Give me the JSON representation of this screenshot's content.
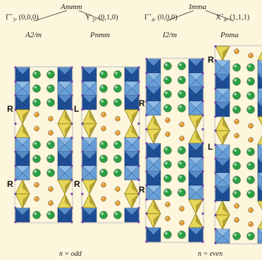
{
  "colors": {
    "background": "#fdf6dc",
    "octahedron_dark": "#1f4e96",
    "octahedron_light": "#6aa0d8",
    "tetrahedron_dark": "#8a7a12",
    "tetrahedron_light": "#e8d85a",
    "a_site_cation": "#2aa043",
    "oxygen_ion": "#e59a2c",
    "bond_lines": "#7a87a8",
    "text": "#222222"
  },
  "left_tree": {
    "parent_group": "Ammm",
    "branches": [
      {
        "irrep_letter": "Γ",
        "irrep_sup": "+",
        "irrep_sub": "3",
        "irrep_vector": ", (0,0,0)",
        "subgroup": "A2/m"
      },
      {
        "irrep_letter": "Y",
        "irrep_sup": "-",
        "irrep_sub": "2",
        "irrep_vector": ", (0,1,0)",
        "subgroup": "Pnmm"
      }
    ]
  },
  "right_tree": {
    "parent_group": "Imma",
    "branches": [
      {
        "irrep_letter": "Γ",
        "irrep_sup": "+",
        "irrep_sub": "4",
        "irrep_vector": ", (0,0,0)",
        "subgroup": "I2/m"
      },
      {
        "irrep_letter": "X",
        "irrep_sup": "+",
        "irrep_sub": "4",
        "irrep_vector": ", (1,1,1)",
        "subgroup": "Pnma"
      }
    ]
  },
  "columns": [
    {
      "id": "A2m",
      "twin_labels": [
        "R",
        "R"
      ]
    },
    {
      "id": "Pnmm",
      "twin_labels": [
        "L",
        "R"
      ]
    },
    {
      "id": "I2m",
      "twin_labels": [
        "R",
        "R"
      ]
    },
    {
      "id": "Pnma",
      "twin_labels": [
        "R",
        "L"
      ]
    }
  ],
  "captions": {
    "odd": "n = odd",
    "even": "n = even"
  }
}
